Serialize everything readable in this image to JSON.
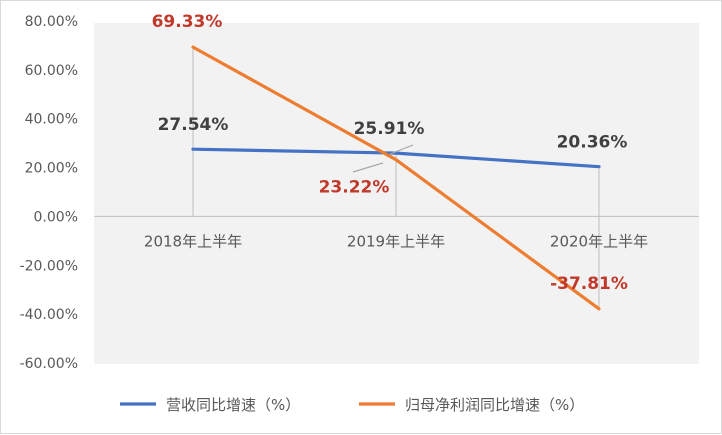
{
  "chart_data": {
    "type": "line",
    "categories": [
      "2018年上半年",
      "2019年上半年",
      "2020年上半年"
    ],
    "ylim": [
      -60,
      80
    ],
    "yticks": [
      "80.00%",
      "60.00%",
      "40.00%",
      "20.00%",
      "0.00%",
      "-20.00%",
      "-40.00%",
      "-60.00%"
    ],
    "ytick_values": [
      80,
      60,
      40,
      20,
      0,
      -20,
      -40,
      -60
    ],
    "grid": false,
    "legend_position": "bottom",
    "series": [
      {
        "name": "营收同比增速（%）",
        "values": [
          27.54,
          25.91,
          20.36
        ],
        "labels": [
          "27.54%",
          "25.91%",
          "20.36%"
        ],
        "color": "#4472c4",
        "label_color": "#404040"
      },
      {
        "name": "归母净利润同比增速（%）",
        "values": [
          69.33,
          23.22,
          -37.81
        ],
        "labels": [
          "69.33%",
          "23.22%",
          "-37.81%"
        ],
        "color": "#ed7d31",
        "label_color": "#c0392b"
      }
    ],
    "plot_area_color": "#f2f2f2"
  }
}
